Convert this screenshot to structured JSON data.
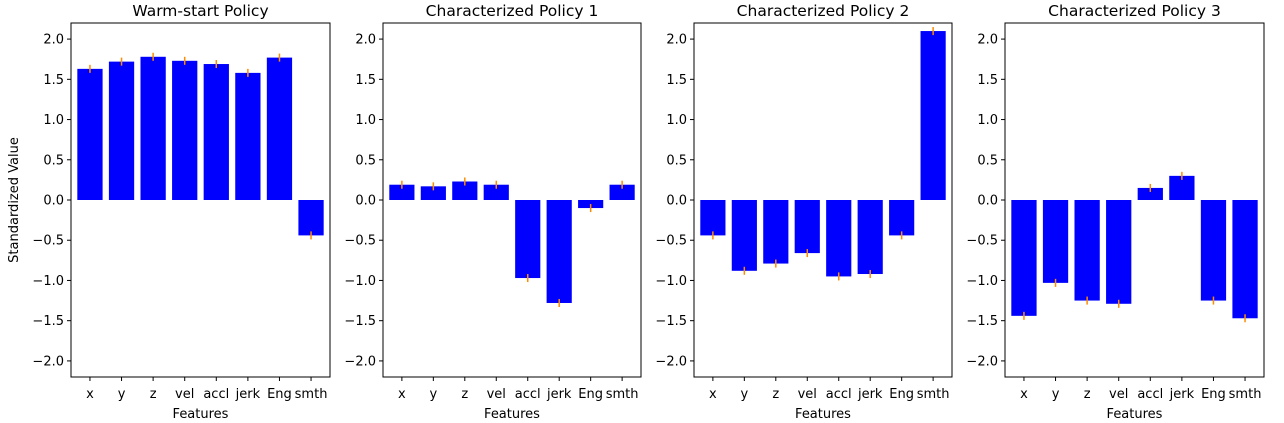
{
  "colors": {
    "bar": "#0000ff",
    "error": "#ff8c00",
    "frame": "#000000"
  },
  "chart_data": [
    {
      "type": "bar",
      "title": "Warm-start Policy",
      "xlabel": "Features",
      "ylabel": "Standardized Value",
      "categories": [
        "x",
        "y",
        "z",
        "vel",
        "accl",
        "jerk",
        "Eng",
        "smth"
      ],
      "values": [
        1.63,
        1.72,
        1.78,
        1.73,
        1.69,
        1.58,
        1.77,
        -0.44
      ],
      "error": [
        0.05,
        0.05,
        0.05,
        0.05,
        0.05,
        0.05,
        0.05,
        0.05
      ],
      "ylim": [
        -2.2,
        2.2
      ],
      "yticks": [
        2.0,
        1.5,
        1.0,
        0.5,
        0.0,
        -0.5,
        -1.0,
        -1.5,
        -2.0
      ],
      "ytick_labels": [
        "2.0",
        "1.5",
        "1.0",
        "0.5",
        "0.0",
        "−0.5",
        "−1.0",
        "−1.5",
        "−2.0"
      ]
    },
    {
      "type": "bar",
      "title": "Characterized Policy 1",
      "xlabel": "Features",
      "categories": [
        "x",
        "y",
        "z",
        "vel",
        "accl",
        "jerk",
        "Eng",
        "smth"
      ],
      "values": [
        0.19,
        0.17,
        0.23,
        0.19,
        -0.97,
        -1.28,
        -0.1,
        0.19
      ],
      "error": [
        0.05,
        0.05,
        0.05,
        0.05,
        0.05,
        0.05,
        0.05,
        0.05
      ],
      "ylim": [
        -2.2,
        2.2
      ],
      "yticks": [
        2.0,
        1.5,
        1.0,
        0.5,
        0.0,
        -0.5,
        -1.0,
        -1.5,
        -2.0
      ],
      "ytick_labels": [
        "2.0",
        "1.5",
        "1.0",
        "0.5",
        "0.0",
        "−0.5",
        "−1.0",
        "−1.5",
        "−2.0"
      ]
    },
    {
      "type": "bar",
      "title": "Characterized Policy 2",
      "xlabel": "Features",
      "categories": [
        "x",
        "y",
        "z",
        "vel",
        "accl",
        "jerk",
        "Eng",
        "smth"
      ],
      "values": [
        -0.44,
        -0.88,
        -0.79,
        -0.66,
        -0.95,
        -0.92,
        -0.44,
        2.1
      ],
      "error": [
        0.05,
        0.05,
        0.05,
        0.05,
        0.05,
        0.05,
        0.05,
        0.05
      ],
      "ylim": [
        -2.2,
        2.2
      ],
      "yticks": [
        2.0,
        1.5,
        1.0,
        0.5,
        0.0,
        -0.5,
        -1.0,
        -1.5,
        -2.0
      ],
      "ytick_labels": [
        "2.0",
        "1.5",
        "1.0",
        "0.5",
        "0.0",
        "−0.5",
        "−1.0",
        "−1.5",
        "−2.0"
      ]
    },
    {
      "type": "bar",
      "title": "Characterized Policy 3",
      "xlabel": "Features",
      "categories": [
        "x",
        "y",
        "z",
        "vel",
        "accl",
        "jerk",
        "Eng",
        "smth"
      ],
      "values": [
        -1.44,
        -1.03,
        -1.25,
        -1.29,
        0.15,
        0.3,
        -1.25,
        -1.47
      ],
      "error": [
        0.05,
        0.05,
        0.05,
        0.05,
        0.05,
        0.05,
        0.05,
        0.05
      ],
      "ylim": [
        -2.2,
        2.2
      ],
      "yticks": [
        2.0,
        1.5,
        1.0,
        0.5,
        0.0,
        -0.5,
        -1.0,
        -1.5,
        -2.0
      ],
      "ytick_labels": [
        "2.0",
        "1.5",
        "1.0",
        "0.5",
        "0.0",
        "−0.5",
        "−1.0",
        "−1.5",
        "−2.0"
      ]
    }
  ]
}
